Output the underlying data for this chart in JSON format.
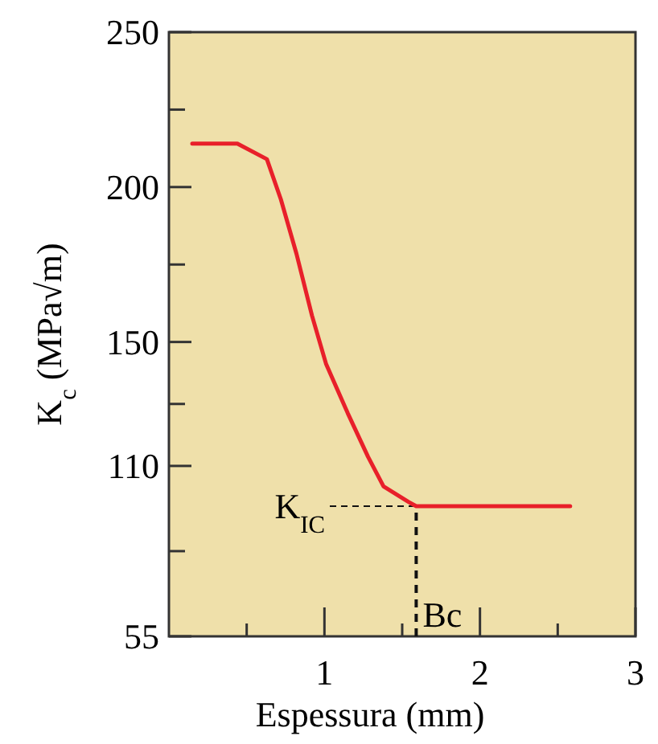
{
  "chart_data": {
    "type": "line",
    "xlabel": "Espessura (mm)",
    "ylabel": "K$_{c}$ (MPa√m)",
    "x": [
      0.15,
      0.44,
      0.63,
      0.72,
      0.82,
      0.92,
      1.01,
      1.15,
      1.28,
      1.38,
      1.54,
      1.59,
      2.58
    ],
    "series": [
      {
        "color": "#e8202a",
        "values": [
          214,
          214,
          209,
          196,
          178.5,
          158.5,
          143,
          127,
          113,
          103.4,
          98.4,
          97,
          97
        ]
      }
    ],
    "xlim": [
      0,
      3
    ],
    "xticks": [
      {
        "value": 0.5,
        "label": null
      },
      1,
      {
        "value": 1.5,
        "label": null
      },
      2,
      {
        "value": 2.5,
        "label": null
      },
      3
    ],
    "ylim": [
      55,
      250
    ],
    "yticks": [
      55,
      {
        "value": 82.5,
        "label": null
      },
      110,
      {
        "value": 130,
        "label": null
      },
      150,
      {
        "value": 175,
        "label": null
      },
      200,
      {
        "value": 225,
        "label": null
      },
      250
    ],
    "annotations": [
      {
        "text": "K$_{IC}$",
        "x": 1.59,
        "y": 97
      },
      {
        "text": "Bc",
        "x": 1.59,
        "y": 97
      }
    ],
    "grid": false,
    "marker": "none",
    "line_style": "solid"
  }
}
